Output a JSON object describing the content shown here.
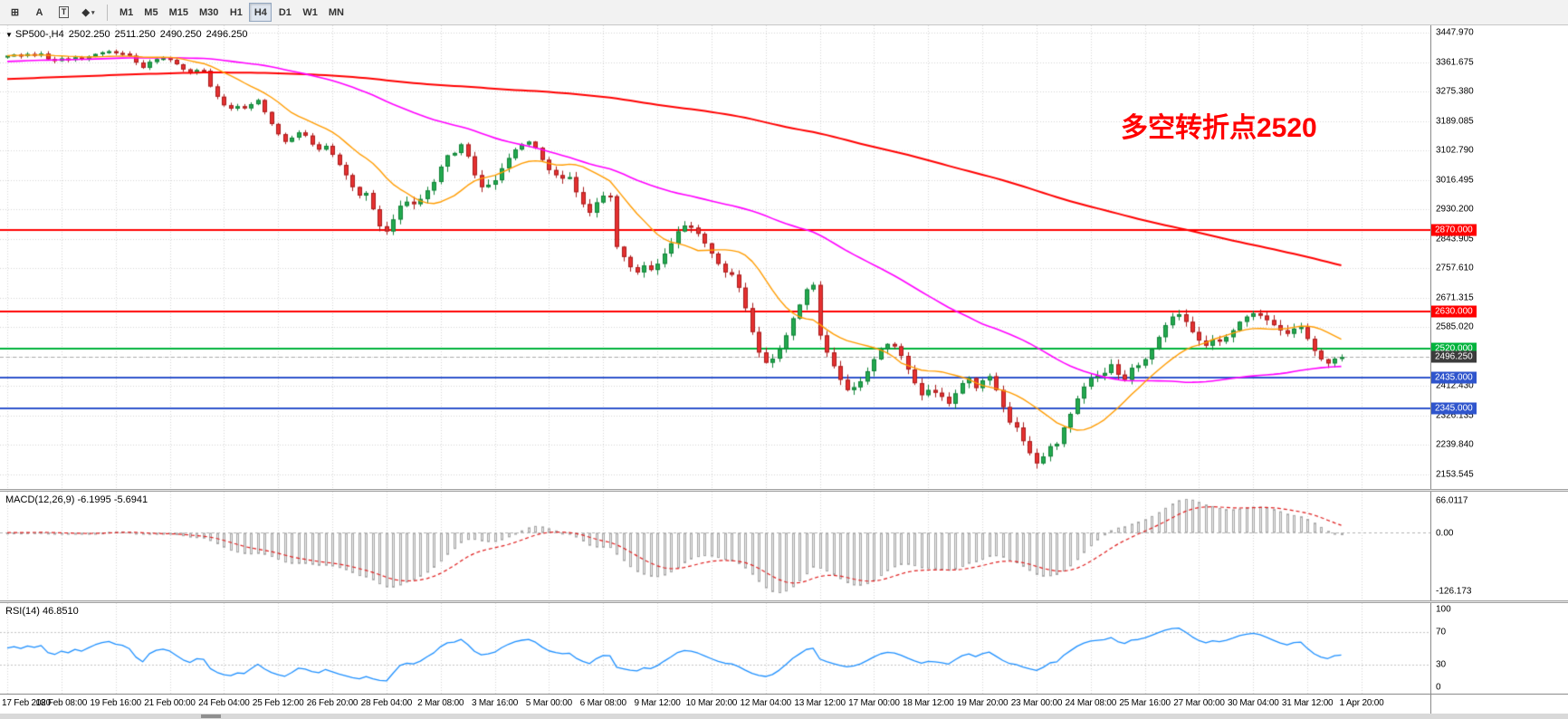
{
  "toolbar": {
    "left_buttons": [
      {
        "name": "chart-grid-button",
        "glyph": "⊞"
      },
      {
        "name": "cursor-a-button",
        "glyph": "A"
      },
      {
        "name": "text-label-button",
        "glyph": "T",
        "boxed": true
      },
      {
        "name": "objects-button",
        "glyph": "◆",
        "caret": "▾"
      }
    ],
    "timeframes": [
      "M1",
      "M5",
      "M15",
      "M30",
      "H1",
      "H4",
      "D1",
      "W1",
      "MN"
    ],
    "active_timeframe": "H4"
  },
  "main_chart": {
    "title": "SP500-,H4",
    "ohlc": {
      "open": "2502.250",
      "high": "2511.250",
      "low": "2490.250",
      "close": "2496.250"
    },
    "annotation": "多空转折点2520",
    "annotation_color": "#ff0000",
    "current_price": "2496.250",
    "price_axis_labels": [
      "3447.970",
      "3361.675",
      "3275.380",
      "3189.085",
      "3102.790",
      "3016.495",
      "2930.200",
      "2843.905",
      "2757.610",
      "2671.315",
      "2585.020",
      "2498.725",
      "2412.430",
      "2326.135",
      "2239.840",
      "2153.545"
    ],
    "hlines": [
      {
        "price": 2870.0,
        "label": "2870.000",
        "color": "#ff0000"
      },
      {
        "price": 2630.0,
        "label": "2630.000",
        "color": "#ff0000"
      },
      {
        "price": 2520.0,
        "label": "2520.000",
        "color": "#00b33c"
      },
      {
        "price": 2435.0,
        "label": "2435.000",
        "color": "#2f55cd"
      },
      {
        "price": 2345.0,
        "label": "2345.000",
        "color": "#2f55cd"
      }
    ]
  },
  "macd_panel": {
    "label": "MACD(12,26,9) -6.1995 -5.6941",
    "axis_labels": [
      "66.0117",
      "0.00",
      "-126.173"
    ]
  },
  "rsi_panel": {
    "label": "RSI(14) 46.8510",
    "axis_labels": [
      "100",
      "70",
      "30",
      "0"
    ],
    "axis_values": [
      100,
      70,
      30,
      0
    ],
    "levels": [
      70,
      30
    ]
  },
  "time_axis": [
    "17 Feb 2020",
    "18 Feb 08:00",
    "19 Feb 16:00",
    "21 Feb 00:00",
    "24 Feb 04:00",
    "25 Feb 12:00",
    "26 Feb 20:00",
    "28 Feb 04:00",
    "2 Mar 08:00",
    "3 Mar 16:00",
    "5 Mar 00:00",
    "6 Mar 08:00",
    "9 Mar 12:00",
    "10 Mar 20:00",
    "12 Mar 04:00",
    "13 Mar 12:00",
    "17 Mar 00:00",
    "18 Mar 12:00",
    "19 Mar 20:00",
    "23 Mar 00:00",
    "24 Mar 08:00",
    "25 Mar 16:00",
    "27 Mar 00:00",
    "30 Mar 04:00",
    "31 Mar 12:00",
    "1 Apr 20:00"
  ],
  "chart_data": {
    "type": "candlestick",
    "symbol": "SP500-",
    "timeframe": "H4",
    "first_open": 3378,
    "closes": [
      3380,
      3383,
      3379,
      3385,
      3382,
      3386,
      3370,
      3365,
      3372,
      3368,
      3375,
      3371,
      3378,
      3385,
      3390,
      3393,
      3388,
      3386,
      3380,
      3360,
      3345,
      3362,
      3370,
      3373,
      3368,
      3355,
      3340,
      3330,
      3338,
      3336,
      3290,
      3260,
      3235,
      3225,
      3232,
      3226,
      3238,
      3250,
      3215,
      3180,
      3150,
      3128,
      3140,
      3155,
      3146,
      3120,
      3105,
      3116,
      3090,
      3060,
      3030,
      2995,
      2970,
      2978,
      2930,
      2880,
      2865,
      2900,
      2940,
      2952,
      2945,
      2960,
      2985,
      3010,
      3055,
      3088,
      3095,
      3120,
      3085,
      3030,
      2995,
      3002,
      3015,
      3050,
      3080,
      3105,
      3120,
      3128,
      3110,
      3075,
      3045,
      3030,
      3020,
      3024,
      2980,
      2945,
      2920,
      2950,
      2970,
      2968,
      2820,
      2790,
      2760,
      2745,
      2765,
      2752,
      2770,
      2800,
      2830,
      2865,
      2882,
      2876,
      2858,
      2830,
      2800,
      2770,
      2745,
      2738,
      2700,
      2640,
      2570,
      2510,
      2480,
      2492,
      2520,
      2560,
      2610,
      2650,
      2695,
      2708,
      2560,
      2510,
      2470,
      2430,
      2400,
      2408,
      2425,
      2455,
      2490,
      2520,
      2535,
      2528,
      2500,
      2460,
      2420,
      2385,
      2400,
      2392,
      2380,
      2360,
      2390,
      2420,
      2435,
      2406,
      2428,
      2440,
      2400,
      2350,
      2305,
      2290,
      2250,
      2215,
      2185,
      2205,
      2235,
      2242,
      2290,
      2330,
      2375,
      2410,
      2435,
      2442,
      2450,
      2475,
      2445,
      2430,
      2465,
      2472,
      2490,
      2520,
      2555,
      2590,
      2615,
      2622,
      2600,
      2570,
      2545,
      2530,
      2548,
      2542,
      2555,
      2575,
      2600,
      2615,
      2625,
      2618,
      2605,
      2590,
      2575,
      2565,
      2580,
      2584,
      2550,
      2515,
      2490,
      2478,
      2492,
      2496.25
    ],
    "price_scale": {
      "top_label_price": 3447.97,
      "step": 86.295,
      "labels_count": 16
    },
    "indicators": {
      "ma_fast": {
        "period": 13,
        "color": "#ff9c00"
      },
      "ma_mid": {
        "period": 55,
        "color": "#ff00ff"
      },
      "ma_slow": {
        "period": 180,
        "color": "#ff0000"
      },
      "macd": {
        "fast": 12,
        "slow": 26,
        "signal": 9
      },
      "rsi": {
        "period": 14
      }
    }
  },
  "colors": {
    "bull": "#23a94f",
    "bull_border": "#128238",
    "bear": "#e63030",
    "bear_border": "#a81d1d",
    "grid": "#d6d6d6",
    "macd_hist_fill": "#ebebeb",
    "macd_hist_border": "#a8a8a8",
    "macd_signal": "#e02020",
    "rsi_line": "#1e90ff",
    "price_marker_bg": "#3c3c3c"
  }
}
